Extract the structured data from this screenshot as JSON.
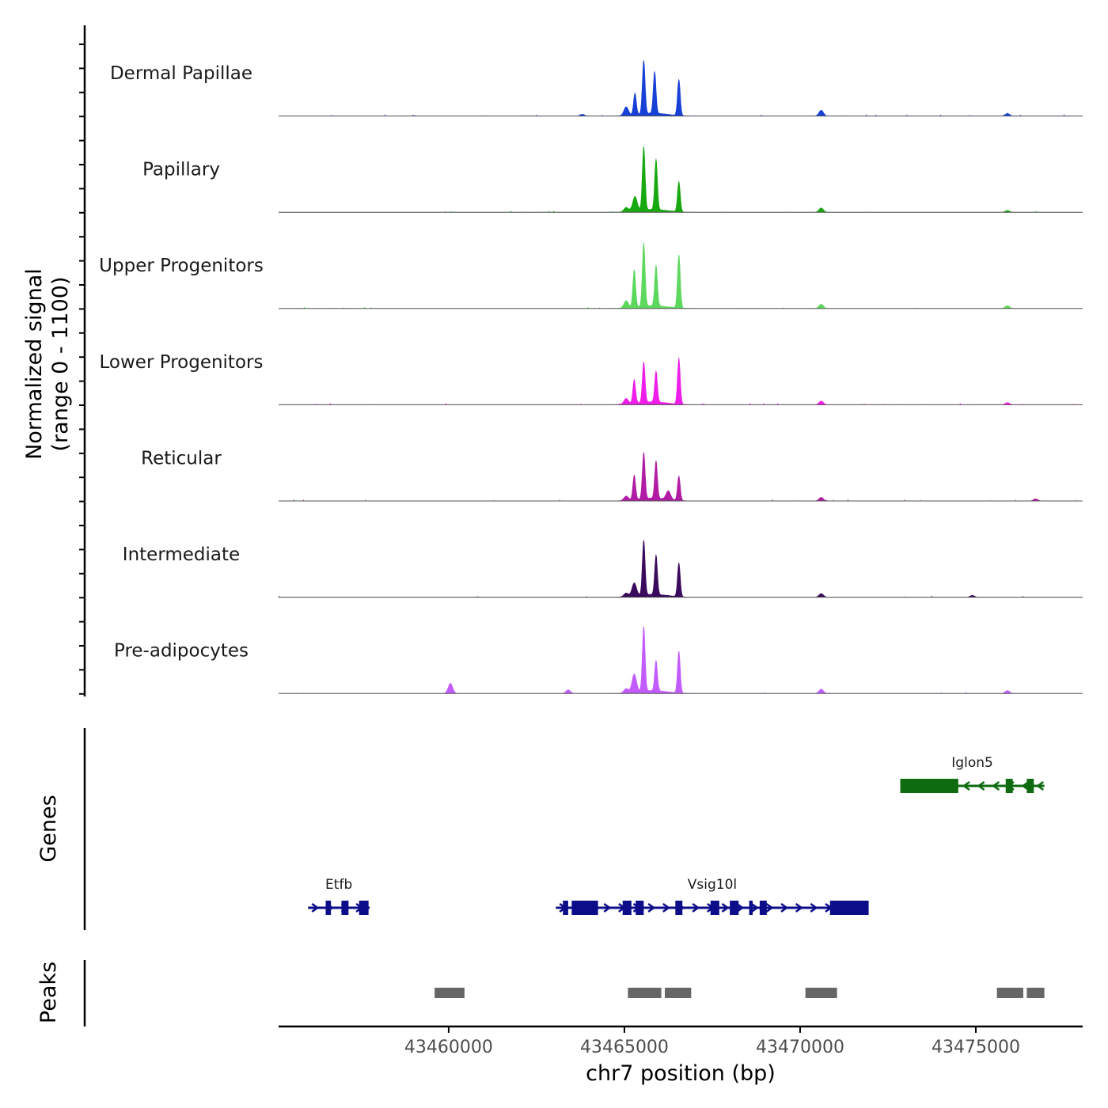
{
  "chart_data": {
    "type": "area",
    "title": "",
    "chromosome": "chr7",
    "xlabel": "chr7 position (bp)",
    "xlim": [
      43455160,
      43478040
    ],
    "xticks": [
      43460000,
      43465000,
      43470000,
      43475000
    ],
    "xtick_labels": [
      "43460000",
      "43465000",
      "43470000",
      "43475000"
    ],
    "ylabel_line1": "Normalized signal",
    "ylabel_line2": "(range 0 - 1100)",
    "ylim": [
      0,
      1100
    ],
    "tracks": [
      {
        "name": "Dermal Papillae",
        "color": "#1740d6",
        "peaks": [
          [
            43465550,
            740
          ],
          [
            43465860,
            580
          ],
          [
            43466550,
            500
          ],
          [
            43465300,
            300
          ],
          [
            43465050,
            120
          ],
          [
            43470600,
            80
          ],
          [
            43475900,
            35
          ],
          [
            43463800,
            25
          ]
        ]
      },
      {
        "name": "Papillary",
        "color": "#18a810",
        "peaks": [
          [
            43465550,
            880
          ],
          [
            43465900,
            700
          ],
          [
            43466550,
            420
          ],
          [
            43465300,
            200
          ],
          [
            43465050,
            60
          ],
          [
            43470600,
            60
          ],
          [
            43475900,
            25
          ]
        ]
      },
      {
        "name": "Upper Progenitors",
        "color": "#5cd85c",
        "peaks": [
          [
            43465550,
            880
          ],
          [
            43465280,
            520
          ],
          [
            43465900,
            560
          ],
          [
            43466550,
            740
          ],
          [
            43465050,
            100
          ],
          [
            43470600,
            60
          ],
          [
            43475900,
            40
          ]
        ]
      },
      {
        "name": "Lower Progenitors",
        "color": "#ee1ee8",
        "peaks": [
          [
            43465550,
            560
          ],
          [
            43465280,
            330
          ],
          [
            43465900,
            430
          ],
          [
            43466550,
            640
          ],
          [
            43465050,
            80
          ],
          [
            43470600,
            50
          ],
          [
            43475900,
            30
          ]
        ]
      },
      {
        "name": "Reticular",
        "color": "#b01ca4",
        "peaks": [
          [
            43465550,
            640
          ],
          [
            43465280,
            340
          ],
          [
            43465900,
            520
          ],
          [
            43466550,
            340
          ],
          [
            43466250,
            120
          ],
          [
            43465050,
            60
          ],
          [
            43470600,
            50
          ],
          [
            43476700,
            30
          ]
        ]
      },
      {
        "name": "Intermediate",
        "color": "#3a0a5c",
        "peaks": [
          [
            43465550,
            760
          ],
          [
            43465280,
            180
          ],
          [
            43465900,
            550
          ],
          [
            43466550,
            470
          ],
          [
            43465050,
            50
          ],
          [
            43470600,
            50
          ],
          [
            43474900,
            25
          ]
        ]
      },
      {
        "name": "Pre-adipocytes",
        "color": "#c25cff",
        "peaks": [
          [
            43465550,
            900
          ],
          [
            43465280,
            250
          ],
          [
            43465900,
            420
          ],
          [
            43466550,
            580
          ],
          [
            43460050,
            140
          ],
          [
            43463400,
            50
          ],
          [
            43465050,
            60
          ],
          [
            43470600,
            60
          ],
          [
            43475900,
            40
          ]
        ]
      }
    ],
    "genes": [
      {
        "name": "Etfb",
        "strand": "+",
        "color": "#0d0d8a",
        "start": 43456000,
        "end": 43457750,
        "row": 2,
        "exons": [
          [
            43456500,
            43456650
          ],
          [
            43456950,
            43457150
          ],
          [
            43457450,
            43457720
          ]
        ]
      },
      {
        "name": "Vsig10l",
        "strand": "+",
        "color": "#0d0d8a",
        "start": 43463050,
        "end": 43471950,
        "row": 2,
        "exons": [
          [
            43463250,
            43463400
          ],
          [
            43463500,
            43464250
          ],
          [
            43464950,
            43465200
          ],
          [
            43465320,
            43465550
          ],
          [
            43466450,
            43466650
          ],
          [
            43467450,
            43467700
          ],
          [
            43468000,
            43468250
          ],
          [
            43468550,
            43468650
          ],
          [
            43468850,
            43469050
          ],
          [
            43470850,
            43471950
          ]
        ]
      },
      {
        "name": "Iglon5",
        "strand": "-",
        "color": "#0e6b10",
        "start": 43472850,
        "end": 43476950,
        "row": 1,
        "exons": [
          [
            43472850,
            43474500
          ],
          [
            43475850,
            43476050
          ],
          [
            43476450,
            43476650
          ]
        ]
      }
    ],
    "peak_regions": [
      [
        43459600,
        43460450
      ],
      [
        43465100,
        43466050
      ],
      [
        43466150,
        43466900
      ],
      [
        43470150,
        43471050
      ],
      [
        43475600,
        43476350
      ],
      [
        43476450,
        43476950
      ]
    ],
    "panel_labels": {
      "genes": "Genes",
      "peaks": "Peaks"
    }
  }
}
